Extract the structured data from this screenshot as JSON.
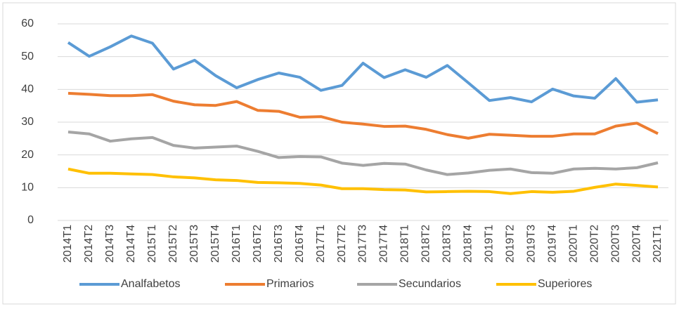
{
  "chart_data": {
    "type": "line",
    "categories": [
      "2014T1",
      "2014T2",
      "2014T3",
      "2014T4",
      "2015T1",
      "2015T2",
      "2015T3",
      "2015T4",
      "2016T1",
      "2016T2",
      "2016T3",
      "2016T4",
      "2017T1",
      "2017T2",
      "2017T3",
      "2017T4",
      "2018T1",
      "2018T2",
      "2018T3",
      "2018T4",
      "2019T1",
      "2019T2",
      "2019T3",
      "2019T4",
      "2020T1",
      "2020T2",
      "2020T3",
      "2020T4",
      "2021T1"
    ],
    "series": [
      {
        "name": "Analfabetos",
        "color": "#5b9bd5",
        "values": [
          54.3,
          50.1,
          53,
          56.3,
          54.1,
          46.2,
          48.9,
          44.2,
          40.5,
          43,
          45,
          43.7,
          39.7,
          41.2,
          48,
          43.6,
          46,
          43.7,
          47.3,
          42,
          36.6,
          37.5,
          36.2,
          40.1,
          38,
          37.3,
          43.3,
          36.1,
          36.8
        ]
      },
      {
        "name": "Primarios",
        "color": "#ed7d31",
        "values": [
          38.8,
          38.5,
          38.1,
          38.1,
          38.4,
          36.4,
          35.3,
          35.1,
          36.3,
          33.6,
          33.3,
          31.5,
          31.7,
          30,
          29.4,
          28.7,
          28.8,
          27.8,
          26.2,
          25.1,
          26.3,
          26,
          25.7,
          25.7,
          26.4,
          26.4,
          28.8,
          29.7,
          26.5
        ]
      },
      {
        "name": "Secundarios",
        "color": "#a5a5a5",
        "values": [
          27,
          26.4,
          24.2,
          24.9,
          25.3,
          22.9,
          22.1,
          22.4,
          22.7,
          21.1,
          19.2,
          19.5,
          19.4,
          17.5,
          16.8,
          17.4,
          17.2,
          15.4,
          14,
          14.5,
          15.3,
          15.7,
          14.6,
          14.4,
          15.7,
          15.9,
          15.7,
          16.1,
          17.6
        ]
      },
      {
        "name": "Superiores",
        "color": "#ffc000",
        "values": [
          15.7,
          14.4,
          14.4,
          14.2,
          14,
          13.3,
          13,
          12.4,
          12.2,
          11.6,
          11.5,
          11.3,
          10.8,
          9.7,
          9.7,
          9.4,
          9.3,
          8.7,
          8.8,
          8.9,
          8.8,
          8.2,
          8.8,
          8.6,
          8.9,
          10.1,
          11.1,
          10.7,
          10.2
        ]
      }
    ],
    "ylim": [
      0,
      60
    ],
    "yticks": [
      0,
      10,
      20,
      30,
      40,
      50,
      60
    ],
    "grid": true,
    "legend": "bottom"
  }
}
